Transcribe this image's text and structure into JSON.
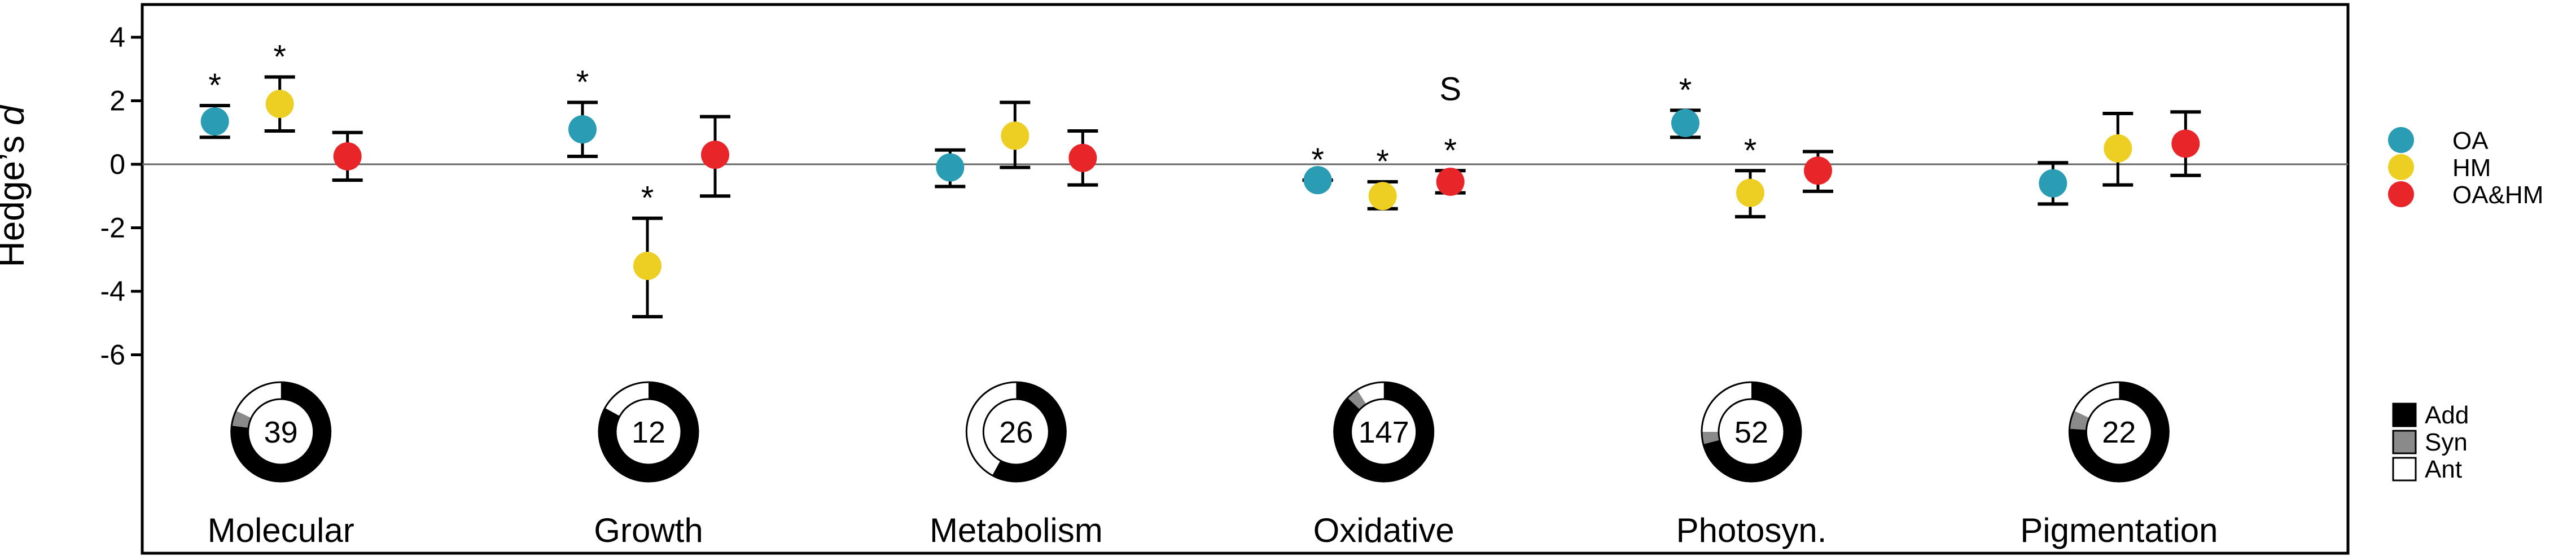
{
  "chart_data": {
    "type": "scatter",
    "title": "",
    "ylabel_main": "Hedge’s ",
    "ylabel_italic": "d",
    "xlabel": "",
    "ylim": [
      -6.5,
      4.5
    ],
    "yticks": [
      4,
      2,
      0,
      -2,
      -4,
      -6
    ],
    "ytick_labels": [
      "4",
      "2",
      "0",
      "-2",
      "-4",
      "-6"
    ],
    "categories": [
      "Molecular",
      "Growth",
      "Metabolism",
      "Oxidative",
      "Photosyn.",
      "Pigmentation"
    ],
    "series": [
      {
        "name": "OA",
        "color": "#2A9DB4",
        "values": [
          1.35,
          1.1,
          -0.1,
          -0.5,
          1.3,
          -0.6
        ],
        "lower": [
          0.85,
          0.25,
          -0.7,
          -0.5,
          0.85,
          -1.25
        ],
        "upper": [
          1.85,
          1.95,
          0.45,
          -0.5,
          1.7,
          0.05
        ]
      },
      {
        "name": "HM",
        "color": "#EDCE22",
        "values": [
          1.9,
          -3.2,
          0.9,
          -1.0,
          -0.9,
          0.5
        ],
        "lower": [
          1.05,
          -4.8,
          -0.1,
          -1.4,
          -1.65,
          -0.65
        ],
        "upper": [
          2.75,
          -1.7,
          1.95,
          -0.55,
          -0.2,
          1.6
        ]
      },
      {
        "name": "OA&HM",
        "color": "#E8262A",
        "values": [
          0.25,
          0.3,
          0.2,
          -0.55,
          -0.2,
          0.65
        ],
        "lower": [
          -0.5,
          -1.0,
          -0.65,
          -0.9,
          -0.85,
          -0.35
        ],
        "upper": [
          1.0,
          1.5,
          1.05,
          -0.2,
          0.4,
          1.65
        ]
      }
    ],
    "significance": [
      {
        "category": "Molecular",
        "series": "OA",
        "label": "*"
      },
      {
        "category": "Molecular",
        "series": "HM",
        "label": "*"
      },
      {
        "category": "Growth",
        "series": "OA",
        "label": "*"
      },
      {
        "category": "Growth",
        "series": "HM",
        "label": "*"
      },
      {
        "category": "Oxidative",
        "series": "OA",
        "label": "*"
      },
      {
        "category": "Oxidative",
        "series": "HM",
        "label": "*"
      },
      {
        "category": "Oxidative",
        "series": "OA&HM",
        "label": "*"
      },
      {
        "category": "Oxidative",
        "series": "OA&HM",
        "label": "S"
      },
      {
        "category": "Photosyn.",
        "series": "OA",
        "label": "*"
      },
      {
        "category": "Photosyn.",
        "series": "HM",
        "label": "*"
      }
    ],
    "donuts": [
      {
        "category": "Molecular",
        "count": "39",
        "add": 0.77,
        "syn": 0.05,
        "ant": 0.18
      },
      {
        "category": "Growth",
        "count": "12",
        "add": 0.83,
        "syn": 0.0,
        "ant": 0.17
      },
      {
        "category": "Metabolism",
        "count": "26",
        "add": 0.58,
        "syn": 0.0,
        "ant": 0.42
      },
      {
        "category": "Oxidative",
        "count": "147",
        "add": 0.87,
        "syn": 0.04,
        "ant": 0.09
      },
      {
        "category": "Photosyn.",
        "count": "52",
        "add": 0.71,
        "syn": 0.04,
        "ant": 0.25
      },
      {
        "category": "Pigmentation",
        "count": "22",
        "add": 0.76,
        "syn": 0.06,
        "ant": 0.18
      }
    ],
    "interaction_legend": [
      {
        "label": "Add",
        "color": "#000000"
      },
      {
        "label": "Syn",
        "color": "#8A8A8A"
      },
      {
        "label": "Ant",
        "color": "#FFFFFF"
      }
    ],
    "legend_position": "right",
    "grid": false,
    "zero_line": true
  }
}
